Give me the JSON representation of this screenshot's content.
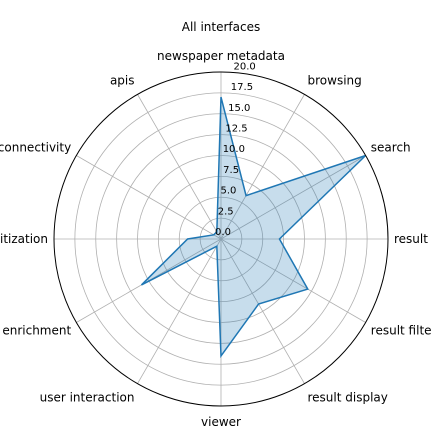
{
  "chart_data": {
    "type": "radar",
    "title": "All interfaces",
    "categories": [
      "newspaper metadata",
      "browsing",
      "search",
      "result sorting",
      "result filtering",
      "result display",
      "viewer",
      "user interaction",
      "enrichment",
      "info on digitization",
      "connectivity",
      "apis"
    ],
    "series": [
      {
        "name": "",
        "values": [
          17,
          6,
          22,
          7,
          12,
          9,
          14,
          1,
          11,
          4,
          1,
          1
        ]
      }
    ],
    "rlim": [
      0,
      20
    ],
    "rticks": [
      "0.0",
      "2.5",
      "5.0",
      "7.5",
      "10.0",
      "12.5",
      "15.0",
      "17.5",
      "20.0"
    ],
    "grid": true,
    "colors": {
      "line": "#1f77b4",
      "fill": "#1f77b4",
      "grid": "#b0b0b0",
      "frame": "#000000"
    }
  }
}
